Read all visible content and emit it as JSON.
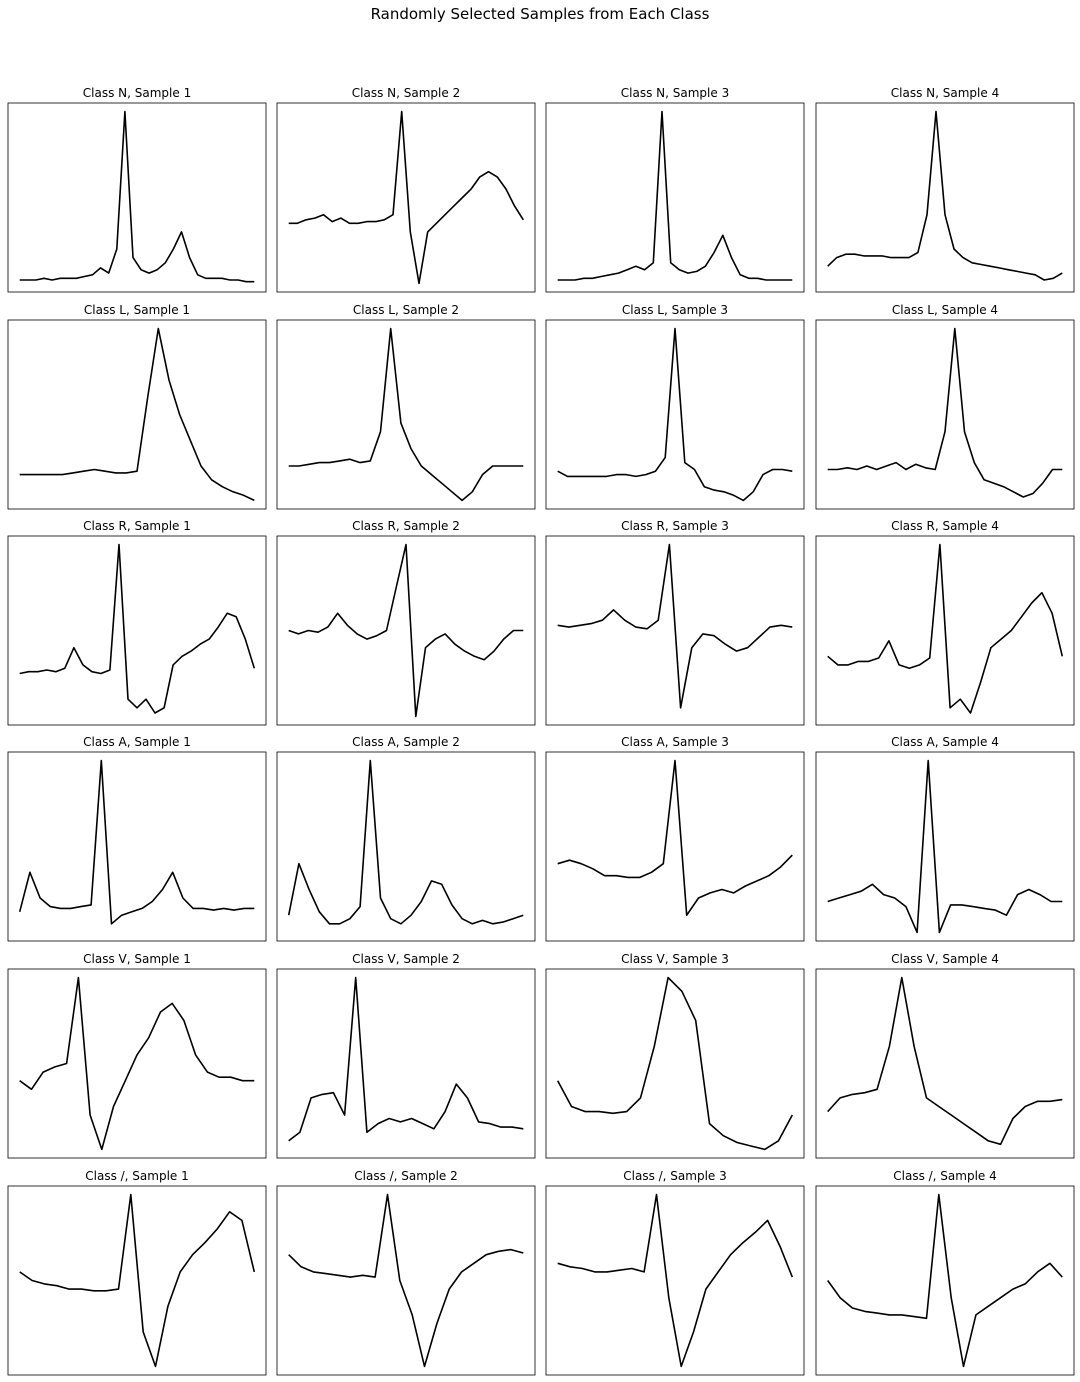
{
  "title": "Randomly Selected Samples from Each Class",
  "chart_data": [
    {
      "type": "line",
      "title": "Class N, Sample 1",
      "color": "#000000",
      "ylim": [
        -5,
        105
      ],
      "values": [
        2,
        2,
        2,
        3,
        2,
        3,
        3,
        3,
        4,
        5,
        9,
        6,
        20,
        100,
        15,
        8,
        6,
        8,
        12,
        20,
        30,
        15,
        5,
        3,
        3,
        3,
        2,
        2,
        1,
        1
      ]
    },
    {
      "type": "line",
      "title": "Class N, Sample 2",
      "color": "#000000",
      "ylim": [
        -5,
        105
      ],
      "values": [
        35,
        35,
        37,
        38,
        40,
        36,
        38,
        35,
        35,
        36,
        36,
        37,
        40,
        100,
        30,
        0,
        30,
        35,
        40,
        45,
        50,
        55,
        62,
        65,
        62,
        55,
        45,
        37
      ]
    },
    {
      "type": "line",
      "title": "Class N, Sample 3",
      "color": "#000000",
      "ylim": [
        -5,
        105
      ],
      "values": [
        2,
        2,
        2,
        3,
        3,
        4,
        5,
        6,
        8,
        10,
        8,
        12,
        100,
        12,
        8,
        6,
        7,
        10,
        18,
        28,
        15,
        5,
        3,
        3,
        2,
        2,
        2,
        2
      ]
    },
    {
      "type": "line",
      "title": "Class N, Sample 4",
      "color": "#000000",
      "ylim": [
        -5,
        105
      ],
      "values": [
        10,
        15,
        17,
        17,
        16,
        16,
        16,
        15,
        15,
        15,
        18,
        40,
        100,
        40,
        20,
        15,
        12,
        11,
        10,
        9,
        8,
        7,
        6,
        5,
        2,
        3,
        6
      ]
    },
    {
      "type": "line",
      "title": "Class L, Sample 1",
      "color": "#000000",
      "ylim": [
        -5,
        105
      ],
      "values": [
        15,
        15,
        15,
        15,
        15,
        16,
        17,
        18,
        17,
        16,
        16,
        17,
        60,
        100,
        70,
        50,
        35,
        20,
        12,
        8,
        5,
        3,
        0
      ]
    },
    {
      "type": "line",
      "title": "Class L, Sample 2",
      "color": "#000000",
      "ylim": [
        -5,
        105
      ],
      "values": [
        20,
        20,
        21,
        22,
        22,
        23,
        24,
        22,
        23,
        40,
        100,
        45,
        30,
        20,
        15,
        10,
        5,
        0,
        5,
        15,
        20,
        20,
        20,
        20
      ]
    },
    {
      "type": "line",
      "title": "Class L, Sample 3",
      "color": "#000000",
      "ylim": [
        -5,
        105
      ],
      "values": [
        17,
        14,
        14,
        14,
        14,
        14,
        15,
        15,
        14,
        15,
        17,
        25,
        100,
        22,
        18,
        8,
        6,
        5,
        3,
        0,
        5,
        15,
        18,
        18,
        17
      ]
    },
    {
      "type": "line",
      "title": "Class L, Sample 4",
      "color": "#000000",
      "ylim": [
        -5,
        105
      ],
      "values": [
        18,
        18,
        19,
        18,
        20,
        18,
        20,
        22,
        18,
        21,
        19,
        18,
        40,
        100,
        40,
        22,
        12,
        10,
        8,
        5,
        2,
        4,
        10,
        18,
        18
      ]
    },
    {
      "type": "line",
      "title": "Class R, Sample 1",
      "color": "#000000",
      "ylim": [
        -5,
        105
      ],
      "values": [
        25,
        26,
        26,
        27,
        26,
        28,
        40,
        30,
        26,
        25,
        27,
        100,
        10,
        5,
        10,
        2,
        5,
        30,
        35,
        38,
        42,
        45,
        52,
        60,
        58,
        45,
        28
      ]
    },
    {
      "type": "line",
      "title": "Class R, Sample 2",
      "color": "#000000",
      "ylim": [
        -5,
        105
      ],
      "values": [
        50,
        48,
        50,
        49,
        52,
        60,
        53,
        48,
        45,
        47,
        50,
        75,
        100,
        0,
        40,
        45,
        48,
        42,
        38,
        35,
        33,
        38,
        45,
        50,
        50
      ]
    },
    {
      "type": "line",
      "title": "Class R, Sample 3",
      "color": "#000000",
      "ylim": [
        -5,
        105
      ],
      "values": [
        53,
        52,
        53,
        54,
        56,
        62,
        56,
        52,
        51,
        56,
        100,
        5,
        40,
        48,
        47,
        42,
        38,
        40,
        46,
        52,
        53,
        52
      ]
    },
    {
      "type": "line",
      "title": "Class R, Sample 4",
      "color": "#000000",
      "ylim": [
        -5,
        105
      ],
      "values": [
        35,
        30,
        30,
        32,
        32,
        34,
        44,
        30,
        28,
        30,
        34,
        100,
        5,
        10,
        2,
        20,
        40,
        45,
        50,
        58,
        66,
        72,
        60,
        35
      ]
    },
    {
      "type": "line",
      "title": "Class A, Sample 1",
      "color": "#000000",
      "ylim": [
        -5,
        105
      ],
      "values": [
        12,
        35,
        20,
        15,
        14,
        14,
        15,
        16,
        100,
        5,
        10,
        12,
        14,
        18,
        25,
        35,
        20,
        14,
        14,
        13,
        14,
        13,
        14,
        14
      ]
    },
    {
      "type": "line",
      "title": "Class A, Sample 2",
      "color": "#000000",
      "ylim": [
        -5,
        105
      ],
      "values": [
        10,
        40,
        25,
        12,
        5,
        5,
        8,
        15,
        100,
        20,
        8,
        5,
        10,
        18,
        30,
        28,
        16,
        8,
        5,
        7,
        5,
        6,
        8,
        10
      ]
    },
    {
      "type": "line",
      "title": "Class A, Sample 3",
      "color": "#000000",
      "ylim": [
        -5,
        105
      ],
      "values": [
        40,
        42,
        40,
        37,
        33,
        33,
        32,
        32,
        35,
        40,
        100,
        10,
        20,
        23,
        25,
        23,
        27,
        30,
        33,
        38,
        45
      ]
    },
    {
      "type": "line",
      "title": "Class A, Sample 4",
      "color": "#000000",
      "ylim": [
        -5,
        105
      ],
      "values": [
        18,
        20,
        22,
        24,
        28,
        22,
        20,
        15,
        0,
        100,
        0,
        16,
        16,
        15,
        14,
        13,
        10,
        22,
        25,
        22,
        18,
        18
      ]
    },
    {
      "type": "line",
      "title": "Class V, Sample 1",
      "color": "#000000",
      "ylim": [
        -5,
        105
      ],
      "values": [
        40,
        35,
        45,
        48,
        50,
        100,
        20,
        0,
        25,
        40,
        55,
        65,
        80,
        85,
        75,
        55,
        45,
        42,
        42,
        40,
        40
      ]
    },
    {
      "type": "line",
      "title": "Class V, Sample 2",
      "color": "#000000",
      "ylim": [
        -5,
        105
      ],
      "values": [
        5,
        10,
        30,
        32,
        33,
        20,
        100,
        10,
        15,
        18,
        16,
        18,
        15,
        12,
        22,
        38,
        30,
        16,
        15,
        13,
        13,
        12
      ]
    },
    {
      "type": "line",
      "title": "Class V, Sample 3",
      "color": "#000000",
      "ylim": [
        -5,
        105
      ],
      "values": [
        40,
        25,
        22,
        22,
        21,
        22,
        30,
        60,
        100,
        92,
        75,
        15,
        8,
        4,
        2,
        0,
        5,
        20
      ]
    },
    {
      "type": "line",
      "title": "Class V, Sample 4",
      "color": "#000000",
      "ylim": [
        -5,
        105
      ],
      "values": [
        22,
        30,
        32,
        33,
        35,
        60,
        100,
        60,
        30,
        25,
        20,
        15,
        10,
        5,
        3,
        18,
        25,
        28,
        28,
        29
      ]
    },
    {
      "type": "line",
      "title": "Class /, Sample 1",
      "color": "#000000",
      "ylim": [
        -5,
        105
      ],
      "values": [
        55,
        50,
        48,
        47,
        45,
        45,
        44,
        44,
        45,
        100,
        20,
        0,
        35,
        55,
        65,
        72,
        80,
        90,
        85,
        55
      ]
    },
    {
      "type": "line",
      "title": "Class /, Sample 2",
      "color": "#000000",
      "ylim": [
        -5,
        105
      ],
      "values": [
        65,
        58,
        55,
        54,
        53,
        52,
        53,
        52,
        100,
        50,
        30,
        0,
        25,
        45,
        55,
        60,
        65,
        67,
        68,
        66
      ]
    },
    {
      "type": "line",
      "title": "Class /, Sample 3",
      "color": "#000000",
      "ylim": [
        -5,
        105
      ],
      "values": [
        60,
        58,
        57,
        55,
        55,
        56,
        57,
        55,
        100,
        40,
        0,
        20,
        45,
        55,
        65,
        72,
        78,
        85,
        70,
        52
      ]
    },
    {
      "type": "line",
      "title": "Class /, Sample 4",
      "color": "#000000",
      "ylim": [
        -5,
        105
      ],
      "values": [
        50,
        40,
        34,
        32,
        31,
        30,
        30,
        29,
        28,
        100,
        40,
        0,
        30,
        35,
        40,
        45,
        48,
        55,
        60,
        52
      ]
    }
  ]
}
